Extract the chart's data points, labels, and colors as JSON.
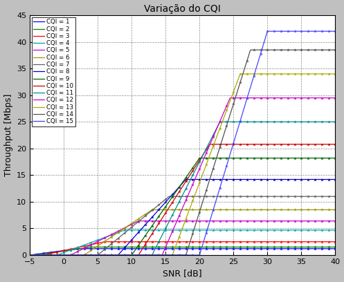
{
  "title": "Variação do CQI",
  "xlabel": "SNR [dB]",
  "ylabel": "Throughput [Mbps]",
  "xlim": [
    -5,
    40
  ],
  "ylim": [
    0,
    45
  ],
  "yticks": [
    0,
    5,
    10,
    15,
    20,
    25,
    30,
    35,
    40,
    45
  ],
  "xticks": [
    -5,
    0,
    5,
    10,
    15,
    20,
    25,
    30,
    35,
    40
  ],
  "background_color": "#c0c0c0",
  "plot_bg_color": "#ffffff",
  "cqi_series": [
    {
      "label": "CQI = 1",
      "color": "#0000ff",
      "max_tp": 1.2,
      "snr_start": -5.0,
      "snr_end": 2.0
    },
    {
      "label": "CQI = 2",
      "color": "#007f00",
      "max_tp": 1.5,
      "snr_start": -4.0,
      "snr_end": 4.0
    },
    {
      "label": "CQI = 3",
      "color": "#ff0000",
      "max_tp": 2.5,
      "snr_start": -3.0,
      "snr_end": 6.0
    },
    {
      "label": "CQI = 4",
      "color": "#00aaaa",
      "max_tp": 4.7,
      "snr_start": -1.0,
      "snr_end": 9.0
    },
    {
      "label": "CQI = 5",
      "color": "#cc00cc",
      "max_tp": 6.4,
      "snr_start": 1.0,
      "snr_end": 11.0
    },
    {
      "label": "CQI = 6",
      "color": "#999900",
      "max_tp": 8.5,
      "snr_start": 3.0,
      "snr_end": 13.0
    },
    {
      "label": "CQI = 7",
      "color": "#606060",
      "max_tp": 11.0,
      "snr_start": 5.0,
      "snr_end": 15.5
    },
    {
      "label": "CQI = 8",
      "color": "#0000cc",
      "max_tp": 14.2,
      "snr_start": 8.0,
      "snr_end": 18.0
    },
    {
      "label": "CQI = 9",
      "color": "#006400",
      "max_tp": 18.2,
      "snr_start": 10.0,
      "snr_end": 20.0
    },
    {
      "label": "CQI = 10",
      "color": "#cc0000",
      "max_tp": 20.8,
      "snr_start": 11.0,
      "snr_end": 21.5
    },
    {
      "label": "CQI = 11",
      "color": "#008b8b",
      "max_tp": 25.0,
      "snr_start": 13.0,
      "snr_end": 23.0
    },
    {
      "label": "CQI = 12",
      "color": "#cc00cc",
      "max_tp": 29.5,
      "snr_start": 14.5,
      "snr_end": 24.5
    },
    {
      "label": "CQI = 13",
      "color": "#aaaa00",
      "max_tp": 34.0,
      "snr_start": 16.0,
      "snr_end": 26.0
    },
    {
      "label": "CQI = 14",
      "color": "#505050",
      "max_tp": 38.5,
      "snr_start": 18.0,
      "snr_end": 27.5
    },
    {
      "label": "CQI = 15",
      "color": "#4444ff",
      "max_tp": 42.0,
      "snr_start": 20.0,
      "snr_end": 30.0
    }
  ]
}
